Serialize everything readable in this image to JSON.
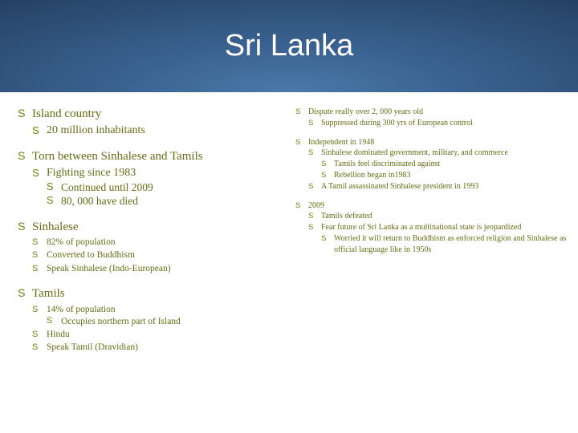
{
  "colors": {
    "text": "#646e14",
    "bullet": "#6b8410",
    "title": "#ffffff",
    "header_gradient_inner": "#4a7aa8",
    "header_gradient_outer": "#0f2238",
    "background": "#ffffff"
  },
  "typography": {
    "title_font": "Arial",
    "title_size_pt": 29,
    "body_font": "Georgia",
    "left_main_size_pt": 11,
    "left_sub_size_pt": 10,
    "left_small_size_pt": 9,
    "right_size_pt": 8
  },
  "title": "Sri Lanka",
  "left": {
    "b1": "Island country",
    "b1_1": "20 million inhabitants",
    "b2": "Torn between Sinhalese and Tamils",
    "b2_1": "Fighting since 1983",
    "b2_1_1": "Continued until 2009",
    "b2_1_2": "80, 000 have died",
    "b3": "Sinhalese",
    "b3_1": "82% of population",
    "b3_2": "Converted to Buddhism",
    "b3_3": "Speak Sinhalese (Indo-European)",
    "b4": "Tamils",
    "b4_1": "14% of population",
    "b4_1_1": "Occupies northern part of Island",
    "b4_2": "Hindu",
    "b4_3": "Speak Tamil (Dravidian)"
  },
  "right": {
    "r1": "Dispute really over 2, 000 years old",
    "r1_1": "Suppressed during 300 yrs of European control",
    "r2": "Independent in 1948",
    "r2_1": "Sinhalese dominated government, military, and commerce",
    "r2_1_1": "Tamils feel discriminated against",
    "r2_1_2": "Rebellion began in1983",
    "r2_2": "A Tamil assassinated Sinhalese president in 1993",
    "r3": "2009",
    "r3_1": "Tamils defeated",
    "r3_2": "Fear future of Sri Lanka as a multinational state is jeopardized",
    "r3_2_1": "Worried it will return to Buddhism as enforced religion and Sinhalese as official language like in 1950s"
  }
}
